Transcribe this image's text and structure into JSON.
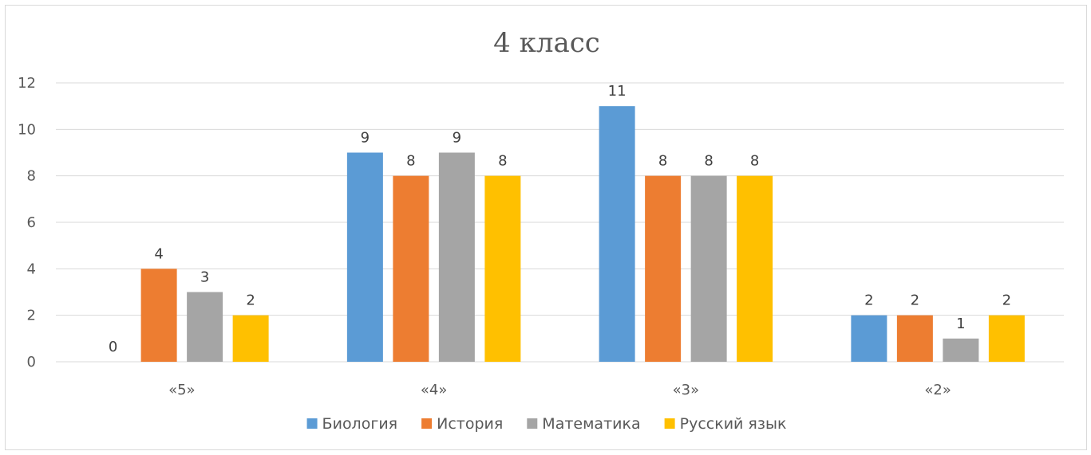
{
  "chart_data": {
    "type": "bar",
    "title": "4 класс",
    "xlabel": "",
    "ylabel": "",
    "categories": [
      "«5»",
      "«4»",
      "«3»",
      "«2»"
    ],
    "series": [
      {
        "name": "Биология",
        "color": "#5B9BD5",
        "values": [
          0,
          9,
          11,
          2
        ]
      },
      {
        "name": "История",
        "color": "#ED7D31",
        "values": [
          4,
          8,
          8,
          2
        ]
      },
      {
        "name": "Математика",
        "color": "#A5A5A5",
        "values": [
          3,
          9,
          8,
          1
        ]
      },
      {
        "name": "Русский язык",
        "color": "#FFC000",
        "values": [
          2,
          8,
          8,
          2
        ]
      }
    ],
    "ylim": [
      0,
      12
    ],
    "yticks": [
      0,
      2,
      4,
      6,
      8,
      10,
      12
    ],
    "grid": true,
    "legend_position": "bottom",
    "data_labels": true
  }
}
